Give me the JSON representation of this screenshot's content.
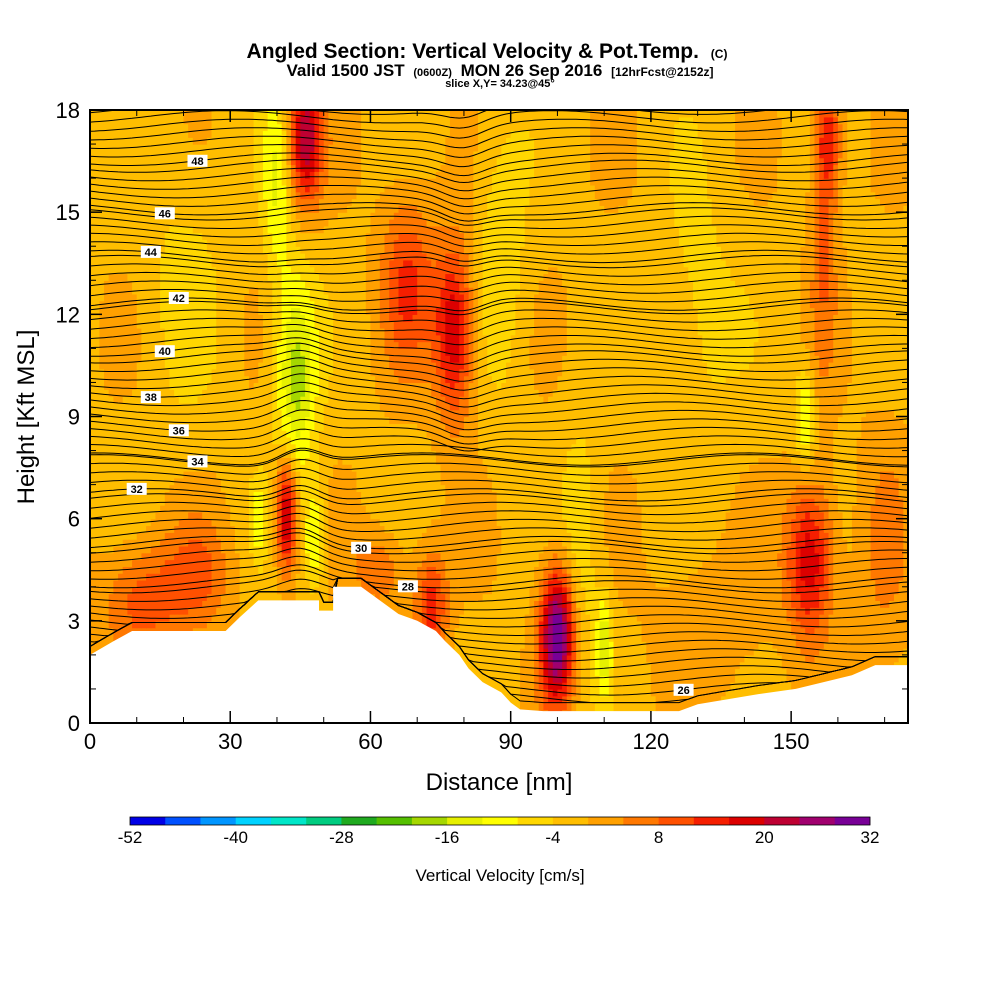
{
  "chart_data": {
    "type": "heatmap",
    "title": "Angled Section: Vertical Velocity & Pot.Temp.",
    "title_suffix": "(C)",
    "subtitle_valid": "Valid 1500 JST",
    "subtitle_utc": "(0600Z)",
    "subtitle_date": "MON 26 Sep 2016",
    "subtitle_fcst": "[12hrFcst@2152z]",
    "slice_label": "slice X,Y= 34.23@45°",
    "xlabel": "Distance [nm]",
    "ylabel": "Height [Kft MSL]",
    "xlim": [
      0,
      175
    ],
    "ylim": [
      0,
      18
    ],
    "x_ticks": [
      "0",
      "30",
      "60",
      "90",
      "120",
      "150"
    ],
    "y_ticks": [
      "0",
      "3",
      "6",
      "9",
      "12",
      "15",
      "18"
    ],
    "colorbar": {
      "label": "Vertical Velocity [cm/s]",
      "tick_labels": [
        "-52",
        "-40",
        "-28",
        "-16",
        "-4",
        "8",
        "20",
        "32"
      ],
      "bounds": [
        -52,
        32
      ],
      "colors": [
        "#0000e6",
        "#0050ff",
        "#0095ff",
        "#00d2ff",
        "#00e6c8",
        "#00cc80",
        "#1faa1f",
        "#54bf00",
        "#a5d700",
        "#e6f000",
        "#ffff00",
        "#ffd700",
        "#ffbe00",
        "#ffa000",
        "#ff7800",
        "#ff5000",
        "#f51e00",
        "#dc0000",
        "#be0032",
        "#a0006e",
        "#780096"
      ]
    },
    "background_value": -1,
    "terrain": [
      [
        0,
        2.0
      ],
      [
        5,
        2.4
      ],
      [
        9,
        2.7
      ],
      [
        29,
        2.7
      ],
      [
        32,
        3.1
      ],
      [
        36,
        3.6
      ],
      [
        49,
        3.6
      ],
      [
        49,
        3.3
      ],
      [
        52,
        3.3
      ],
      [
        52,
        4.0
      ],
      [
        58,
        4.0
      ],
      [
        62,
        3.6
      ],
      [
        66,
        3.2
      ],
      [
        70,
        3.0
      ],
      [
        74,
        2.7
      ],
      [
        76,
        2.4
      ],
      [
        79,
        2.0
      ],
      [
        81,
        1.6
      ],
      [
        84,
        1.2
      ],
      [
        88,
        0.9
      ],
      [
        90,
        0.6
      ],
      [
        92,
        0.4
      ],
      [
        97,
        0.35
      ],
      [
        100,
        0.35
      ],
      [
        103,
        0.35
      ],
      [
        106,
        0.35
      ],
      [
        126,
        0.35
      ],
      [
        130,
        0.55
      ],
      [
        143,
        0.85
      ],
      [
        151,
        1.0
      ],
      [
        163,
        1.4
      ],
      [
        168,
        1.7
      ],
      [
        175,
        1.7
      ]
    ],
    "velocity_cells": [
      {
        "x": 46,
        "y": 17.2,
        "sx": 2.6,
        "sy": 1.4,
        "v": 24
      },
      {
        "x": 42,
        "y": 6.2,
        "sx": 1.6,
        "sy": 1.2,
        "v": 25
      },
      {
        "x": 44,
        "y": 10.2,
        "sx": 3.2,
        "sy": 2.2,
        "v": -17
      },
      {
        "x": 40,
        "y": 16.0,
        "sx": 2.2,
        "sy": 2.0,
        "v": -11
      },
      {
        "x": 48,
        "y": 5.4,
        "sx": 1.6,
        "sy": 1.0,
        "v": -12
      },
      {
        "x": 36,
        "y": 6.0,
        "sx": 1.2,
        "sy": 0.8,
        "v": -9
      },
      {
        "x": 78,
        "y": 11.5,
        "sx": 3.0,
        "sy": 1.8,
        "v": 21
      },
      {
        "x": 68,
        "y": 13.0,
        "sx": 4.0,
        "sy": 1.8,
        "v": 13
      },
      {
        "x": 73,
        "y": 3.4,
        "sx": 2.5,
        "sy": 1.2,
        "v": 15
      },
      {
        "x": 62,
        "y": 4.5,
        "sx": 4.0,
        "sy": 0.8,
        "v": 9
      },
      {
        "x": 100,
        "y": 2.6,
        "sx": 2.6,
        "sy": 1.4,
        "v": 34
      },
      {
        "x": 110,
        "y": 2.3,
        "sx": 1.2,
        "sy": 1.0,
        "v": -14
      },
      {
        "x": 105,
        "y": 5.0,
        "sx": 3.0,
        "sy": 3.0,
        "v": -6
      },
      {
        "x": 88,
        "y": 14.0,
        "sx": 4.0,
        "sy": 3.0,
        "v": -6
      },
      {
        "x": 154,
        "y": 4.8,
        "sx": 3.5,
        "sy": 1.6,
        "v": 21
      },
      {
        "x": 153,
        "y": 9.0,
        "sx": 1.5,
        "sy": 1.0,
        "v": -12
      },
      {
        "x": 157,
        "y": 14.5,
        "sx": 2.0,
        "sy": 3.0,
        "v": 9
      },
      {
        "x": 158,
        "y": 17.2,
        "sx": 2.0,
        "sy": 1.2,
        "v": 13
      },
      {
        "x": 11,
        "y": 3.6,
        "sx": 6.0,
        "sy": 1.2,
        "v": 11
      },
      {
        "x": 23,
        "y": 4.3,
        "sx": 5.0,
        "sy": 1.2,
        "v": 9
      },
      {
        "x": 130,
        "y": 12.0,
        "sx": 6.0,
        "sy": 3.0,
        "v": -5
      },
      {
        "x": 20,
        "y": 13.0,
        "sx": 6.0,
        "sy": 3.0,
        "v": -4
      },
      {
        "x": 132,
        "y": 3.0,
        "sx": 8.0,
        "sy": 1.5,
        "v": 5
      },
      {
        "x": 170,
        "y": 5.0,
        "sx": 4.0,
        "sy": 3.0,
        "v": 5
      }
    ],
    "isentropes": [
      {
        "value": "26",
        "height": 1.0,
        "label_x": 127
      },
      {
        "value": "28",
        "height": 4.15,
        "label_x": 68
      },
      {
        "value": "30",
        "height": 5.3,
        "label_x": 58
      },
      {
        "value": "32",
        "height": 6.7,
        "label_x": 10
      },
      {
        "value": "34",
        "height": 7.75,
        "label_x": 23
      },
      {
        "value": "36",
        "height": 8.75,
        "label_x": 19
      },
      {
        "value": "38",
        "height": 9.75,
        "label_x": 13
      },
      {
        "value": "40",
        "height": 10.95,
        "label_x": 16
      },
      {
        "value": "42",
        "height": 12.3,
        "label_x": 19
      },
      {
        "value": "44",
        "height": 13.7,
        "label_x": 13
      },
      {
        "value": "46",
        "height": 15.1,
        "label_x": 16
      },
      {
        "value": "48",
        "height": 16.55,
        "label_x": 23
      }
    ]
  }
}
